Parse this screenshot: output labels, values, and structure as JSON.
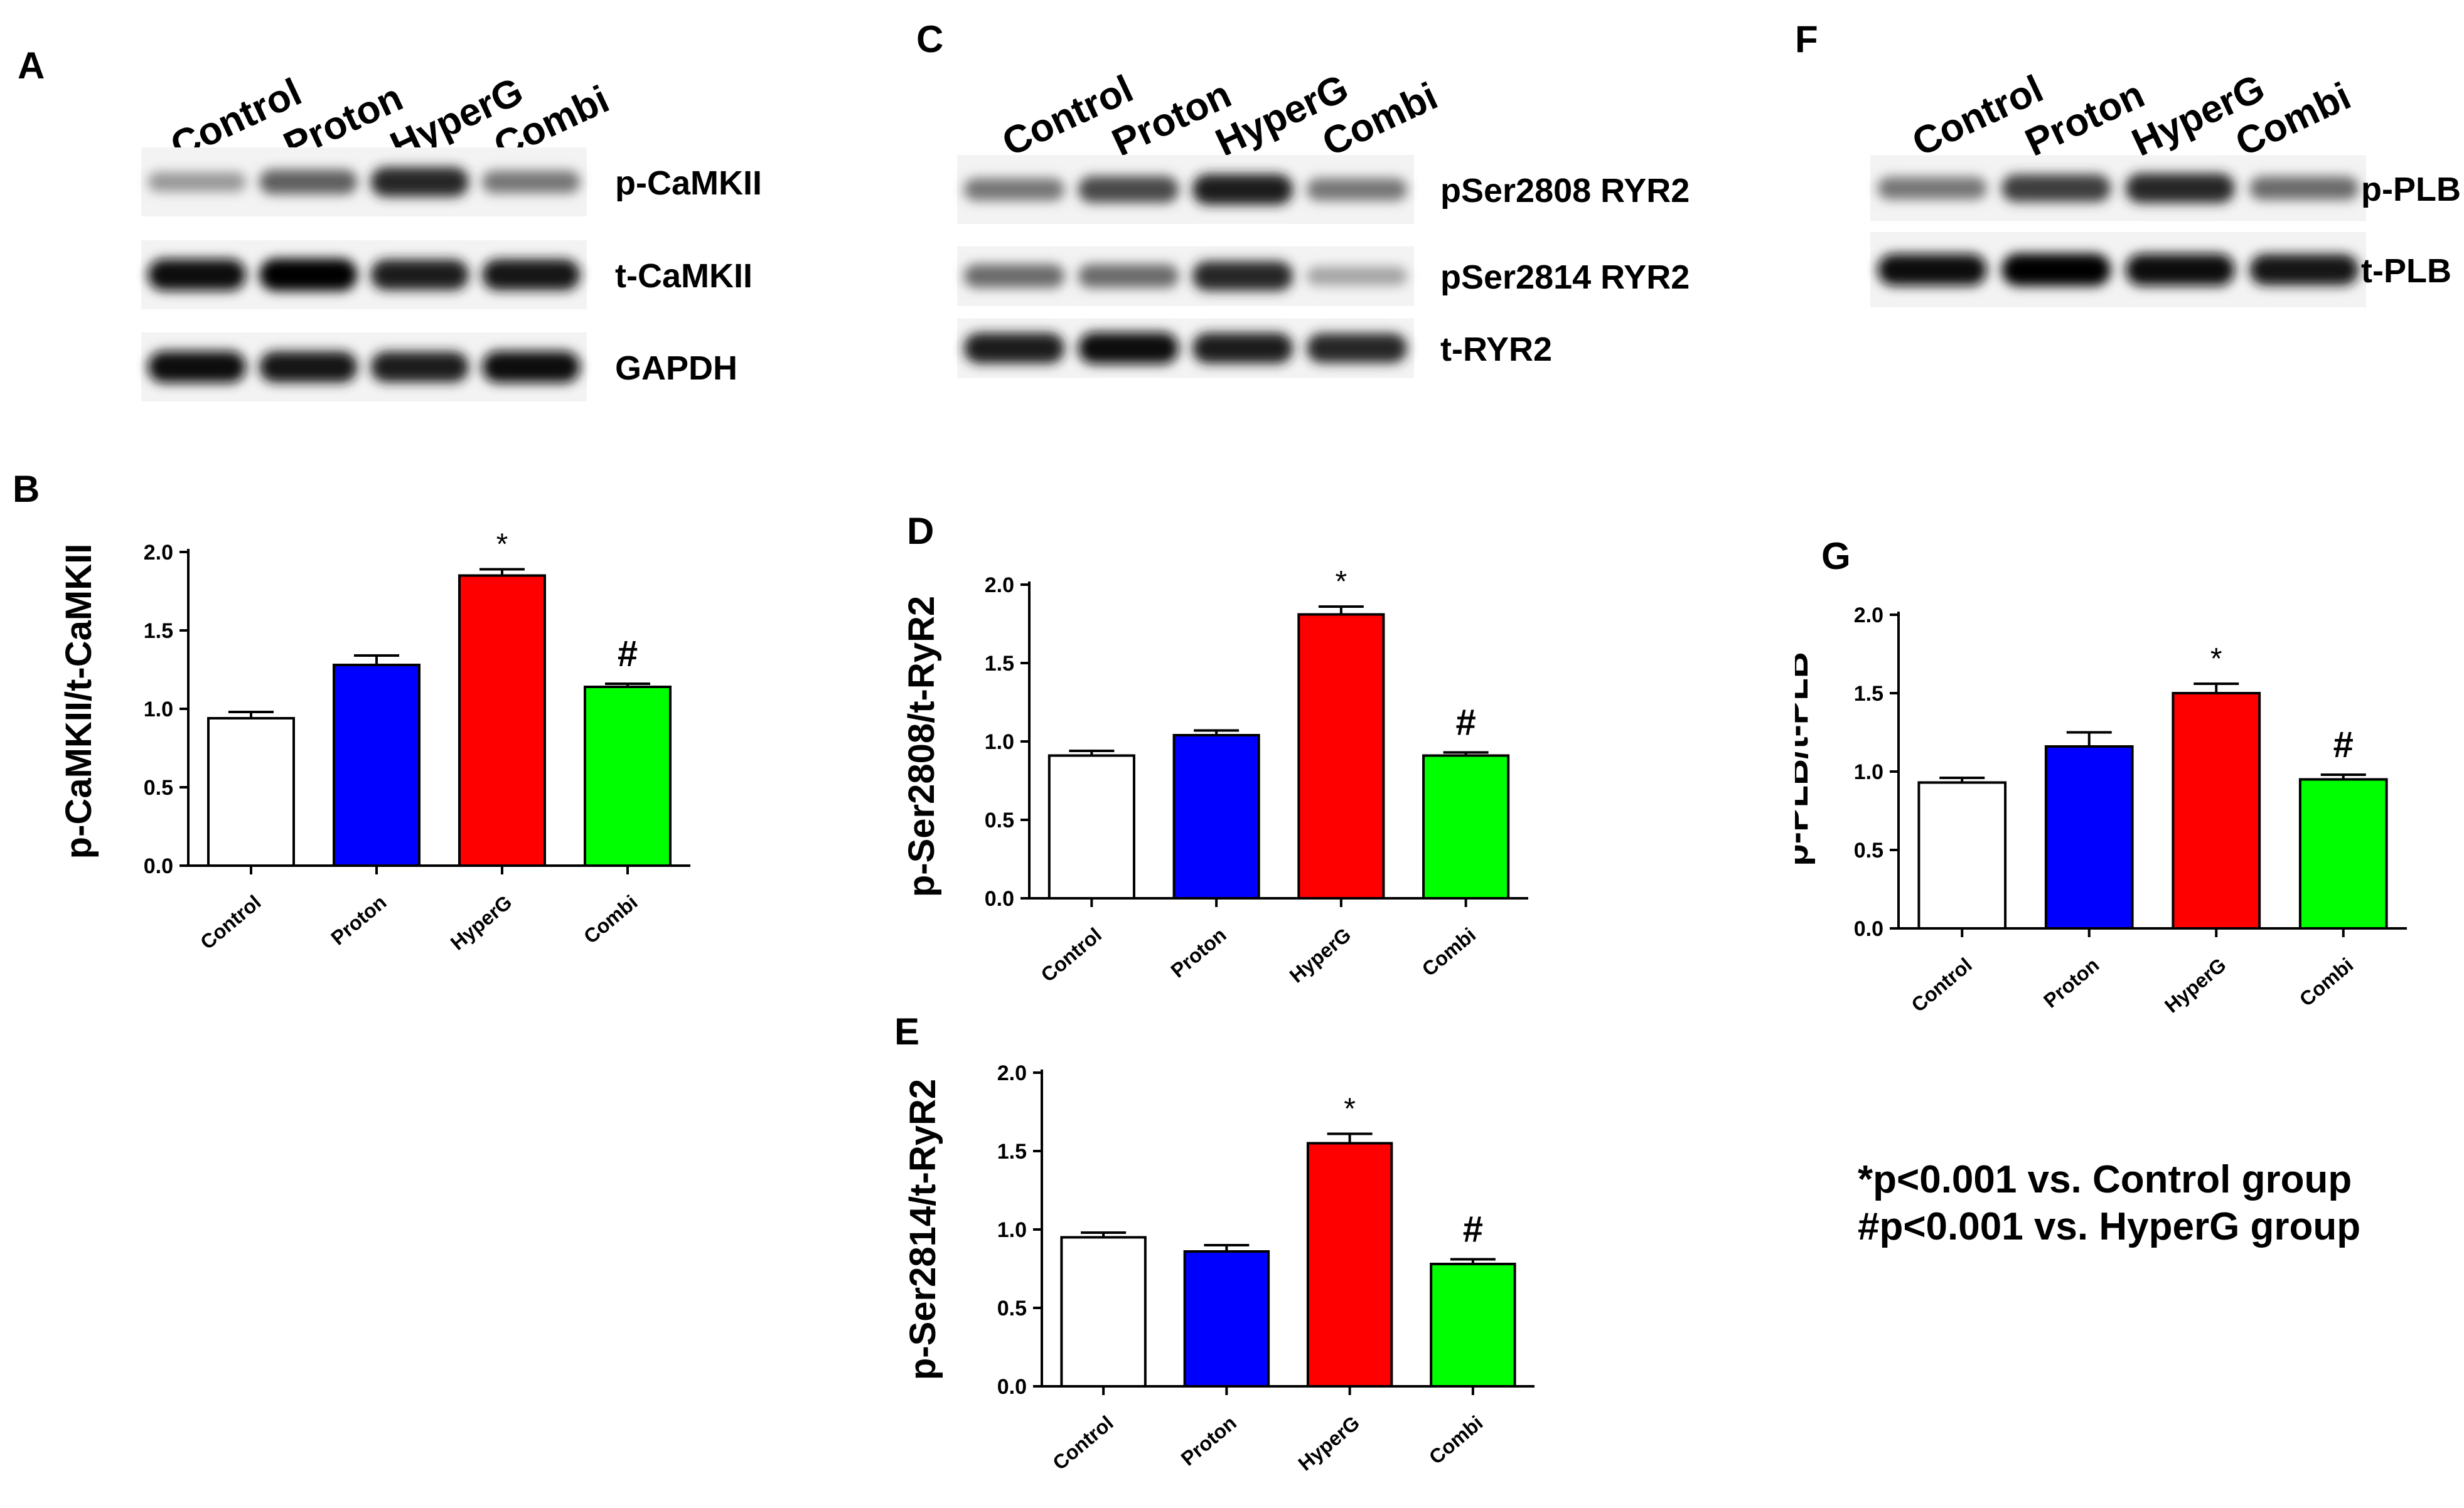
{
  "panel_labels": {
    "A": "A",
    "B": "B",
    "C": "C",
    "D": "D",
    "E": "E",
    "F": "F",
    "G": "G"
  },
  "lanes": [
    "Control",
    "Proton",
    "HyperG",
    "Combi"
  ],
  "blots": {
    "A": {
      "rows": [
        {
          "label": "p-CaMKII",
          "intensities": [
            0.35,
            0.6,
            0.85,
            0.5
          ]
        },
        {
          "label": "t-CaMKII",
          "intensities": [
            0.95,
            1.0,
            0.9,
            0.92
          ]
        },
        {
          "label": "GAPDH",
          "intensities": [
            0.95,
            0.92,
            0.9,
            0.95
          ]
        }
      ]
    },
    "C": {
      "rows": [
        {
          "label": "pSer2808 RYR2",
          "intensities": [
            0.5,
            0.7,
            0.9,
            0.5
          ]
        },
        {
          "label": "pSer2814 RYR2",
          "intensities": [
            0.55,
            0.55,
            0.85,
            0.3
          ]
        },
        {
          "label": "t-RYR2",
          "intensities": [
            0.9,
            0.95,
            0.9,
            0.85
          ]
        }
      ]
    },
    "F": {
      "rows": [
        {
          "label": "p-PLB",
          "intensities": [
            0.5,
            0.75,
            0.85,
            0.55
          ]
        },
        {
          "label": "t-PLB",
          "intensities": [
            0.95,
            1.0,
            0.97,
            0.92
          ]
        }
      ]
    }
  },
  "chart_data": [
    {
      "panel": "B",
      "type": "bar",
      "categories": [
        "Control",
        "Proton",
        "HyperG",
        "Combi"
      ],
      "values": [
        0.94,
        1.28,
        1.85,
        1.14
      ],
      "errors": [
        0.04,
        0.06,
        0.04,
        0.02
      ],
      "annotations": [
        "",
        "",
        "*",
        "#"
      ],
      "ylabel": "p-CaMKII/t-CaMKII",
      "ylim": [
        0,
        2.0
      ],
      "yticks": [
        "0.0",
        "0.5",
        "1.0",
        "1.5",
        "2.0"
      ],
      "colors": [
        "#ffffff",
        "#0000ff",
        "#ff0000",
        "#00ff00"
      ]
    },
    {
      "panel": "D",
      "type": "bar",
      "categories": [
        "Control",
        "Proton",
        "HyperG",
        "Combi"
      ],
      "values": [
        0.91,
        1.04,
        1.81,
        0.91
      ],
      "errors": [
        0.03,
        0.03,
        0.05,
        0.02
      ],
      "annotations": [
        "",
        "",
        "*",
        "#"
      ],
      "ylabel": "p-Ser2808/t-RyR2",
      "ylim": [
        0,
        2.0
      ],
      "yticks": [
        "0.0",
        "0.5",
        "1.0",
        "1.5",
        "2.0"
      ],
      "colors": [
        "#ffffff",
        "#0000ff",
        "#ff0000",
        "#00ff00"
      ]
    },
    {
      "panel": "E",
      "type": "bar",
      "categories": [
        "Control",
        "Proton",
        "HyperG",
        "Combi"
      ],
      "values": [
        0.95,
        0.86,
        1.55,
        0.78
      ],
      "errors": [
        0.03,
        0.04,
        0.06,
        0.03
      ],
      "annotations": [
        "",
        "",
        "*",
        "#"
      ],
      "ylabel": "p-Ser2814/t-RyR2",
      "ylim": [
        0,
        2.0
      ],
      "yticks": [
        "0.0",
        "0.5",
        "1.0",
        "1.5",
        "2.0"
      ],
      "colors": [
        "#ffffff",
        "#0000ff",
        "#ff0000",
        "#00ff00"
      ]
    },
    {
      "panel": "G",
      "type": "bar",
      "categories": [
        "Control",
        "Proton",
        "HyperG",
        "Combi"
      ],
      "values": [
        0.93,
        1.16,
        1.5,
        0.95
      ],
      "errors": [
        0.03,
        0.09,
        0.06,
        0.03
      ],
      "annotations": [
        "",
        "",
        "*",
        "#"
      ],
      "ylabel": "p-PLB/t-PLB",
      "ylim": [
        0,
        2.0
      ],
      "yticks": [
        "0.0",
        "0.5",
        "1.0",
        "1.5",
        "2.0"
      ],
      "colors": [
        "#ffffff",
        "#0000ff",
        "#ff0000",
        "#00ff00"
      ]
    }
  ],
  "footnotes": {
    "line1": "*p<0.001 vs. Control group",
    "line2": "#p<0.001 vs. HyperG group"
  }
}
